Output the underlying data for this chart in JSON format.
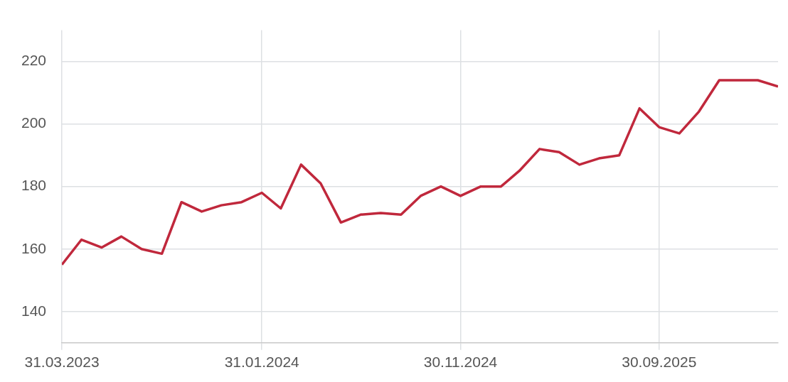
{
  "chart_data": {
    "type": "line",
    "x": [
      "2023-03-31",
      "2023-04-30",
      "2023-05-31",
      "2023-06-30",
      "2023-07-31",
      "2023-08-31",
      "2023-09-30",
      "2023-10-31",
      "2023-11-30",
      "2023-12-31",
      "2024-01-31",
      "2024-02-29",
      "2024-03-31",
      "2024-04-30",
      "2024-05-31",
      "2024-06-30",
      "2024-07-31",
      "2024-08-31",
      "2024-09-30",
      "2024-10-31",
      "2024-11-30",
      "2024-12-31",
      "2025-01-31",
      "2025-02-28",
      "2025-03-31",
      "2025-04-30",
      "2025-05-31",
      "2025-06-30",
      "2025-07-31",
      "2025-08-31",
      "2025-09-30",
      "2025-10-31",
      "2025-11-30",
      "2025-12-31",
      "2026-01-31",
      "2026-02-28",
      "2026-03-31"
    ],
    "series": [
      {
        "color": "#c0283c",
        "values": [
          155,
          163,
          160.5,
          164,
          160,
          158.5,
          175,
          172,
          174,
          175,
          178,
          173,
          187,
          181,
          168.5,
          171,
          171.5,
          171,
          177,
          180,
          177,
          180,
          180,
          185,
          192,
          191,
          187,
          189,
          190,
          205,
          199,
          197,
          204,
          214,
          214,
          214,
          212
        ]
      }
    ],
    "xlim": [
      "2023-03-31",
      "2026-03-31"
    ],
    "xticks": [
      {
        "value": "2023-03-31",
        "label": "31.03.2023"
      },
      {
        "value": "2024-01-31",
        "label": "31.01.2024"
      },
      {
        "value": "2024-11-30",
        "label": "30.11.2024"
      },
      {
        "value": "2025-09-30",
        "label": "30.09.2025"
      }
    ],
    "ylim": [
      130,
      230
    ],
    "yticks": [
      140,
      160,
      180,
      200,
      220
    ],
    "grid": true,
    "legend": false,
    "marker": "none",
    "line_style": "solid"
  }
}
